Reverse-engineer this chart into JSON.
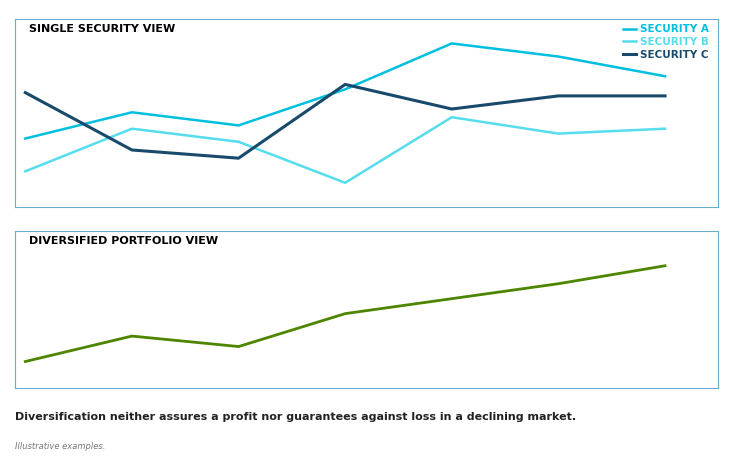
{
  "title_top": "SINGLE SECURITY VIEW",
  "title_bottom": "DIVERSIFIED PORTFOLIO VIEW",
  "security_a": {
    "x": [
      0,
      1,
      2,
      3,
      4,
      5,
      6
    ],
    "y": [
      0.42,
      0.58,
      0.5,
      0.72,
      1.0,
      0.92,
      0.8
    ],
    "color": "#00BFDF",
    "label": "SECURITY A",
    "linewidth": 1.8
  },
  "security_b": {
    "x": [
      0,
      1,
      2,
      3,
      4,
      5,
      6
    ],
    "y": [
      0.22,
      0.48,
      0.4,
      0.15,
      0.55,
      0.45,
      0.48
    ],
    "color": "#55DDEE",
    "label": "SECURITY B",
    "linewidth": 1.8
  },
  "security_c": {
    "x": [
      0,
      1,
      2,
      3,
      4,
      5,
      6
    ],
    "y": [
      0.7,
      0.35,
      0.3,
      0.75,
      0.6,
      0.68,
      0.68
    ],
    "color": "#1A4A6B",
    "label": "SECURITY C",
    "linewidth": 2.2
  },
  "portfolio": {
    "x": [
      0,
      1,
      2,
      3,
      4,
      5,
      6
    ],
    "y": [
      0.18,
      0.35,
      0.28,
      0.5,
      0.6,
      0.7,
      0.82
    ],
    "color": "#4E8500",
    "linewidth": 2.0
  },
  "legend_colors": {
    "SECURITY A": "#00BFDF",
    "SECURITY B": "#55DDEE",
    "SECURITY C": "#1A4A6B"
  },
  "footnote_bold": "Diversification neither assures a profit nor guarantees against loss in a declining market.",
  "footnote_small": "Illustrative examples.",
  "border_color": "#6AADCC",
  "background_color": "#FFFFFF",
  "title_fontsize": 8,
  "legend_fontsize": 7.5,
  "footnote_bold_fontsize": 8,
  "footnote_small_fontsize": 6
}
